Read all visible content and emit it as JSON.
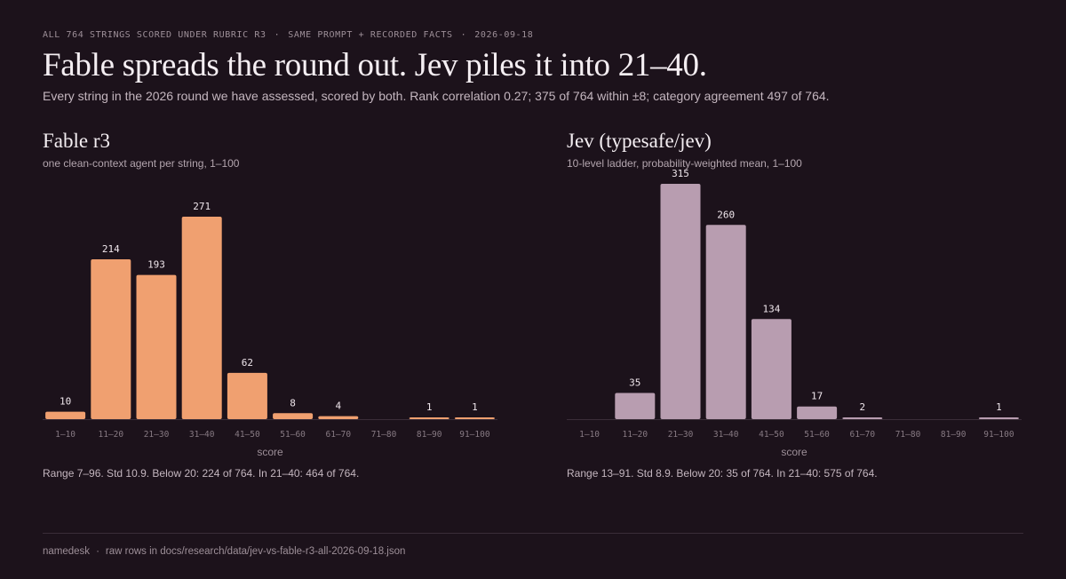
{
  "kicker": {
    "part1": "ALL 764 STRINGS SCORED UNDER RUBRIC R3",
    "part2": "SAME PROMPT + RECORDED FACTS",
    "part3": "2026-09-18",
    "separator": "·"
  },
  "headline": "Fable spreads the round out. Jev piles it into 21–40.",
  "subhead": "Every string in the 2026 round we have assessed, scored by both. Rank correlation 0.27; 375 of 764 within ±8; category agreement 497 of 764.",
  "panels": [
    {
      "title": "Fable r3",
      "subtitle": "one clean-context agent per string, 1–100",
      "stats": "Range 7–96. Std 10.9. Below 20: 224 of 764. In 21–40: 464 of 764."
    },
    {
      "title": "Jev (typesafe/jev)",
      "subtitle": "10-level ladder, probability-weighted mean, 1–100",
      "stats": "Range 13–91. Std 8.9. Below 20: 35 of 764. In 21–40: 575 of 764."
    }
  ],
  "chart_data": [
    {
      "type": "bar",
      "title": "Fable r3",
      "categories": [
        "1–10",
        "11–20",
        "21–30",
        "31–40",
        "41–50",
        "51–60",
        "61–70",
        "71–80",
        "81–90",
        "91–100"
      ],
      "values": [
        10,
        214,
        193,
        271,
        62,
        8,
        4,
        0,
        1,
        1
      ],
      "data_labels": [
        "10",
        "214",
        "193",
        "271",
        "62",
        "8",
        "4",
        "",
        "1",
        "1"
      ],
      "xlabel": "score",
      "ylabel": "",
      "ylim": [
        0,
        315
      ],
      "grid": false,
      "color": "#f0a070"
    },
    {
      "type": "bar",
      "title": "Jev (typesafe/jev)",
      "categories": [
        "1–10",
        "11–20",
        "21–30",
        "31–40",
        "41–50",
        "51–60",
        "61–70",
        "71–80",
        "81–90",
        "91–100"
      ],
      "values": [
        0,
        35,
        315,
        260,
        134,
        17,
        2,
        0,
        0,
        1
      ],
      "data_labels": [
        "",
        "35",
        "315",
        "260",
        "134",
        "17",
        "2",
        "",
        "",
        "1"
      ],
      "xlabel": "score",
      "ylabel": "",
      "ylim": [
        0,
        315
      ],
      "grid": false,
      "color": "#b89db0"
    }
  ],
  "footer": {
    "brand": "namedesk",
    "separator": "·",
    "note": "raw rows in docs/research/data/jev-vs-fable-r3-all-2026-09-18.json"
  },
  "colors": {
    "background": "#1c121b",
    "baseline": "#3b2e39"
  }
}
